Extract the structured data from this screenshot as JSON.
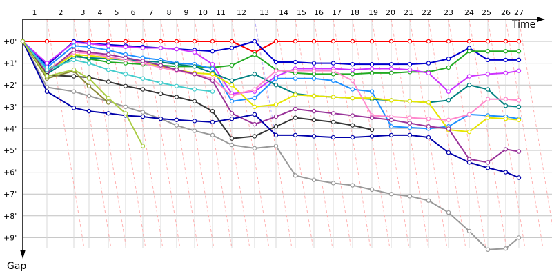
{
  "chart_data": {
    "type": "line",
    "xlabel": "Time",
    "ylabel": "Gap",
    "x_ticks": [
      "1",
      "2",
      "3",
      "4",
      "5",
      "6",
      "7",
      "8",
      "9",
      "10",
      "11",
      "12",
      "13",
      "14",
      "15",
      "16",
      "17",
      "18",
      "19",
      "20",
      "21",
      "22",
      "23",
      "24",
      "25",
      "26",
      "27"
    ],
    "y_ticks": [
      "+0'",
      "+1'",
      "+2'",
      "+3'",
      "+4'",
      "+5'",
      "+6'",
      "+7'",
      "+8'",
      "+9'"
    ],
    "y_range": [
      0,
      9.5
    ],
    "grid": true,
    "series": [
      {
        "color": "#ff0000",
        "x": [
          0,
          1,
          2,
          3,
          4,
          5,
          6,
          7,
          8,
          9,
          10,
          11,
          12,
          13,
          14,
          15,
          16,
          17,
          18,
          19,
          20,
          21,
          22,
          23,
          24,
          25,
          26
        ],
        "y": [
          0,
          0,
          0,
          0,
          0,
          0,
          0,
          0,
          0,
          0,
          0,
          0,
          0.5,
          0,
          0,
          0,
          0,
          0,
          0,
          0,
          0,
          0,
          0,
          0,
          0,
          0,
          0
        ]
      },
      {
        "color": "#0000cc",
        "x": [
          0,
          1,
          2,
          3,
          4,
          5,
          6,
          7,
          8,
          9,
          10,
          11,
          12,
          13,
          14,
          15,
          16,
          17,
          18,
          19,
          20,
          21,
          22,
          23,
          24,
          25,
          26
        ],
        "y": [
          0,
          1.1,
          0,
          0.1,
          0.15,
          0.2,
          0.25,
          0.3,
          0.35,
          0.4,
          0.45,
          0.3,
          0,
          0.95,
          0.95,
          1.0,
          1.0,
          1.05,
          1.05,
          1.05,
          1.05,
          1.0,
          0.8,
          0.3,
          0.85,
          0.85,
          0.85
        ]
      },
      {
        "color": "#22aa22",
        "x": [
          0,
          1,
          2,
          3,
          4,
          5,
          6,
          7,
          8,
          9,
          10,
          11,
          12,
          13,
          14,
          15,
          16,
          17,
          18,
          19,
          20,
          21,
          22,
          23,
          24,
          25,
          26
        ],
        "y": [
          0,
          1.3,
          0.6,
          0.8,
          0.95,
          1.0,
          1.05,
          1.1,
          1.15,
          1.15,
          1.2,
          1.1,
          0.6,
          1.3,
          1.45,
          1.5,
          1.5,
          1.5,
          1.45,
          1.45,
          1.4,
          1.4,
          1.2,
          0.45,
          0.45,
          0.45,
          0.45
        ]
      },
      {
        "color": "#cc33ff",
        "x": [
          0,
          1,
          2,
          3,
          4,
          5,
          6,
          7,
          8,
          9,
          10,
          11,
          12,
          13,
          14,
          15,
          16,
          17,
          18,
          19,
          20,
          21,
          22,
          23,
          24,
          25,
          26
        ],
        "y": [
          0,
          1.0,
          0.05,
          0.1,
          0.2,
          0.25,
          0.3,
          0.3,
          0.35,
          0.5,
          1.05,
          2.4,
          2.3,
          1.6,
          1.25,
          1.25,
          1.25,
          1.3,
          1.25,
          1.25,
          1.3,
          1.45,
          2.3,
          1.6,
          1.5,
          1.45,
          1.35
        ]
      },
      {
        "color": "#1e90ff",
        "x": [
          0,
          1,
          2,
          3,
          4,
          5,
          6,
          7,
          8,
          9,
          10,
          11,
          12,
          13,
          14,
          15,
          16,
          17,
          18,
          19,
          20,
          21,
          22,
          23,
          24,
          25,
          26
        ],
        "y": [
          0,
          1.2,
          0.2,
          0.25,
          0.4,
          0.6,
          0.75,
          0.85,
          1.0,
          1.05,
          1.25,
          2.75,
          2.6,
          1.7,
          1.7,
          1.7,
          1.8,
          2.2,
          2.3,
          3.9,
          3.95,
          4.0,
          3.9,
          3.35,
          3.4,
          3.45,
          3.55
        ]
      },
      {
        "color": "#008080",
        "x": [
          0,
          1,
          2,
          3,
          4,
          5,
          6,
          7,
          8,
          9,
          10,
          11,
          12,
          13,
          14,
          15,
          16,
          17,
          18,
          19,
          20,
          21,
          22,
          23,
          24,
          25,
          26
        ],
        "y": [
          0,
          1.5,
          0.7,
          0.75,
          0.8,
          0.85,
          0.9,
          0.95,
          1.05,
          1.15,
          1.45,
          1.8,
          1.5,
          2.0,
          2.4,
          2.5,
          2.55,
          2.6,
          2.65,
          2.7,
          2.75,
          2.8,
          2.7,
          2.0,
          2.2,
          2.95,
          3.0
        ]
      },
      {
        "color": "#e6e600",
        "x": [
          0,
          1,
          2,
          3,
          4,
          5,
          6,
          7,
          8,
          9,
          10,
          11,
          12,
          13,
          14,
          15,
          16,
          17,
          18,
          19,
          20,
          21,
          22,
          23,
          24,
          25,
          26
        ],
        "y": [
          0,
          1.4,
          0.6,
          0.65,
          0.75,
          0.85,
          1.0,
          1.15,
          1.3,
          1.45,
          1.5,
          2.0,
          3.0,
          2.9,
          2.45,
          2.5,
          2.55,
          2.6,
          2.6,
          2.7,
          2.75,
          2.8,
          4.05,
          4.15,
          3.5,
          3.55,
          3.6
        ]
      },
      {
        "color": "#ff88cc",
        "x": [
          0,
          1,
          2,
          3,
          4,
          5,
          6,
          7,
          8,
          9,
          10,
          11,
          12,
          13,
          14,
          15,
          16,
          17,
          18,
          19,
          20,
          21,
          22,
          23,
          24,
          25,
          26
        ],
        "y": [
          0,
          1.35,
          0.5,
          0.55,
          0.7,
          0.85,
          1.0,
          1.2,
          1.35,
          1.5,
          1.7,
          2.5,
          2.2,
          1.35,
          1.35,
          1.35,
          1.35,
          1.8,
          3.4,
          3.45,
          3.5,
          3.55,
          3.6,
          3.35,
          2.65,
          2.65,
          2.7
        ]
      },
      {
        "color": "#993399",
        "x": [
          0,
          1,
          2,
          3,
          4,
          5,
          6,
          7,
          8,
          9,
          10,
          11,
          12,
          13,
          14,
          15,
          16,
          17,
          18,
          19,
          20,
          21,
          22,
          23,
          24,
          25,
          26
        ],
        "y": [
          0,
          1.45,
          0.4,
          0.5,
          0.6,
          0.75,
          0.9,
          1.1,
          1.3,
          1.5,
          1.8,
          3.3,
          3.8,
          3.45,
          3.1,
          3.2,
          3.3,
          3.4,
          3.5,
          3.6,
          3.75,
          3.9,
          4.0,
          5.4,
          5.55,
          4.95,
          5.05
        ]
      },
      {
        "color": "#44cccc",
        "x": [
          0,
          1,
          2,
          3,
          4,
          5,
          6,
          7,
          8,
          9,
          10
        ],
        "y": [
          0,
          1.3,
          0.85,
          1.0,
          1.3,
          1.5,
          1.7,
          1.9,
          2.05,
          2.2,
          2.3
        ]
      },
      {
        "color": "#333333",
        "x": [
          0,
          1,
          2,
          3,
          4,
          5,
          6,
          7,
          8,
          9,
          10,
          11,
          12,
          13,
          14,
          15,
          16,
          17,
          18
        ],
        "y": [
          0,
          1.55,
          1.6,
          1.65,
          1.85,
          2.05,
          2.2,
          2.4,
          2.55,
          2.75,
          3.2,
          4.45,
          4.35,
          3.9,
          3.5,
          3.6,
          3.7,
          3.85,
          4.05
        ]
      },
      {
        "color": "#999999",
        "x": [
          0,
          1,
          2,
          3,
          4,
          5,
          6,
          7,
          8,
          9,
          10,
          11,
          12,
          13,
          14,
          15,
          16,
          17,
          18,
          19,
          20,
          21,
          22,
          23,
          24,
          25,
          26
        ],
        "y": [
          0,
          2.1,
          2.3,
          2.5,
          2.75,
          3.0,
          3.25,
          3.55,
          3.85,
          4.1,
          4.3,
          4.75,
          4.9,
          4.8,
          6.15,
          6.35,
          6.5,
          6.6,
          6.8,
          7.0,
          7.1,
          7.3,
          7.85,
          8.7,
          9.55,
          9.5,
          9.0
        ]
      },
      {
        "color": "#0000aa",
        "x": [
          0,
          1,
          2,
          3,
          4,
          5,
          6,
          7,
          8,
          9,
          10,
          11,
          12,
          13,
          14,
          15,
          16,
          17,
          18,
          19,
          20,
          21,
          22,
          23,
          24,
          25,
          26
        ],
        "y": [
          0,
          2.3,
          3.05,
          3.2,
          3.3,
          3.4,
          3.45,
          3.55,
          3.6,
          3.65,
          3.7,
          3.55,
          3.35,
          4.3,
          4.3,
          4.35,
          4.4,
          4.4,
          4.35,
          4.3,
          4.3,
          4.4,
          5.1,
          5.55,
          5.8,
          6.0,
          6.25
        ]
      },
      {
        "color": "#888833",
        "x": [
          0,
          1,
          2,
          3,
          4
        ],
        "y": [
          0,
          1.7,
          1.35,
          2.05,
          2.8
        ]
      },
      {
        "color": "#aacc44",
        "x": [
          0,
          1,
          2,
          3,
          4,
          5,
          6
        ],
        "y": [
          0,
          1.6,
          1.3,
          1.7,
          2.6,
          3.3,
          4.8
        ]
      }
    ]
  }
}
